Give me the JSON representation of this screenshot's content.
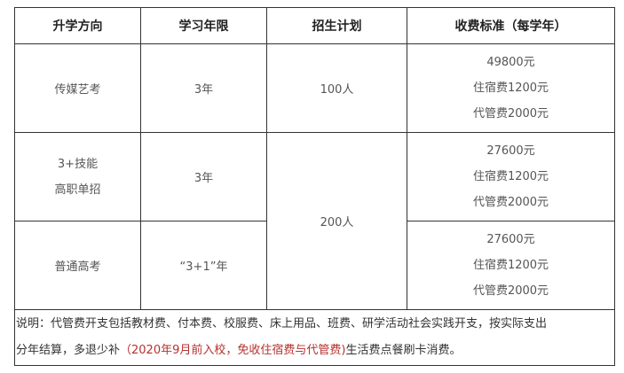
{
  "headers": [
    "升学方向",
    "学习年限",
    "招生计划",
    "收费标准（每学年）"
  ],
  "rows": [
    {
      "direction": [
        "传媒艺考"
      ],
      "years": "3年",
      "plan": "100人",
      "fees": [
        "49800元",
        "住宿费1200元",
        "代管费2000元"
      ]
    },
    {
      "direction": [
        "3+技能",
        "高职单招"
      ],
      "years": "3年",
      "fees": [
        "27600元",
        "住宿费1200元",
        "代管费2000元"
      ]
    },
    {
      "direction": [
        "普通高考"
      ],
      "years": "“3+1”年",
      "fees": [
        "27600元",
        "住宿费1200元",
        "代管费2000元"
      ]
    }
  ],
  "plan_shared": "200人",
  "note": {
    "line1": "说明：代管费开支包括教材费、付本费、校服费、床上用品、班费、研学活动社会实践开支，按实际支出",
    "line2a": "分年结算，多退少补",
    "highlight": "（2020年9月前入校，免收住宿费与代管费)",
    "line2b": "生活费点餐刷卡消费。",
    "highlight_color": "#b5322f"
  }
}
